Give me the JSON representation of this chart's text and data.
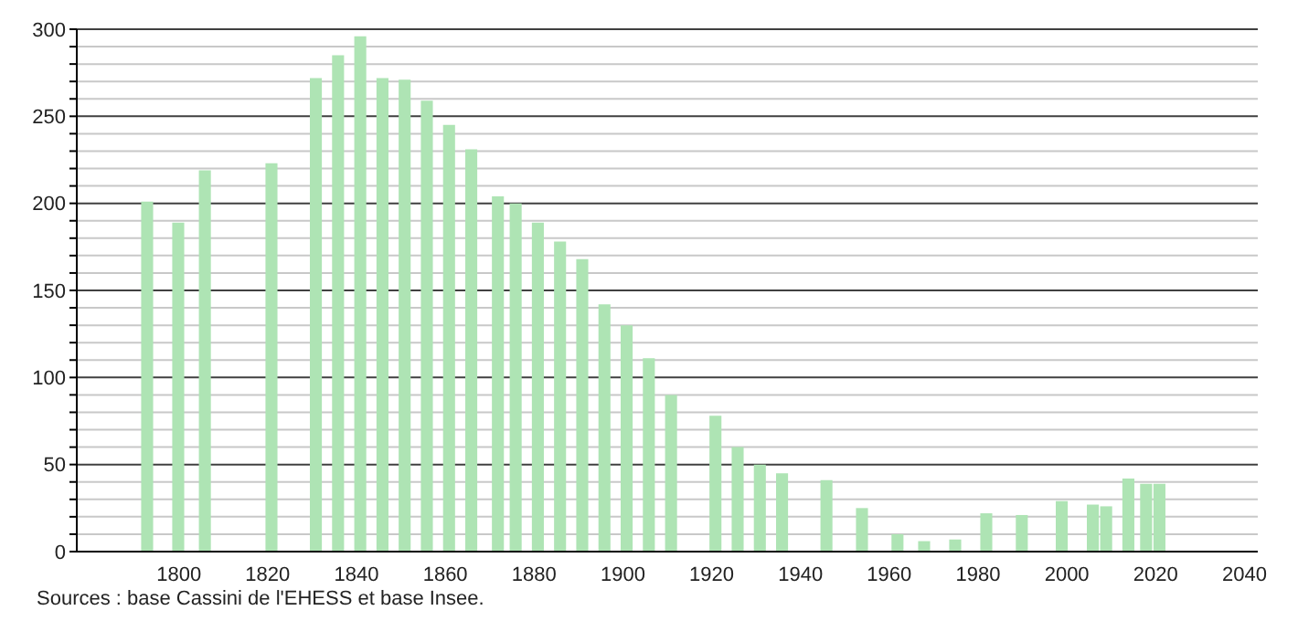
{
  "chart_data": {
    "type": "bar",
    "x": [
      1793,
      1800,
      1806,
      1821,
      1831,
      1836,
      1841,
      1846,
      1851,
      1856,
      1861,
      1866,
      1872,
      1876,
      1881,
      1886,
      1891,
      1896,
      1901,
      1906,
      1911,
      1921,
      1926,
      1931,
      1936,
      1946,
      1954,
      1962,
      1968,
      1975,
      1982,
      1990,
      1999,
      2006,
      2009,
      2014,
      2018,
      2021
    ],
    "values": [
      201,
      189,
      219,
      223,
      272,
      285,
      296,
      272,
      271,
      259,
      245,
      231,
      204,
      200,
      189,
      178,
      168,
      142,
      130,
      111,
      90,
      78,
      60,
      50,
      45,
      41,
      25,
      10,
      6,
      7,
      22,
      21,
      29,
      27,
      26,
      42,
      39,
      39
    ],
    "color": "#aee4b4",
    "xlim": [
      1777,
      2043
    ],
    "xticks": [
      1800,
      1820,
      1840,
      1860,
      1880,
      1900,
      1920,
      1940,
      1960,
      1980,
      2000,
      2020,
      2040
    ],
    "ylim": [
      0,
      300
    ],
    "yticks": [
      0,
      {
        "value": 10,
        "label": null
      },
      {
        "value": 20,
        "label": null
      },
      {
        "value": 30,
        "label": null
      },
      {
        "value": 40,
        "label": null
      },
      50,
      {
        "value": 60,
        "label": null
      },
      {
        "value": 70,
        "label": null
      },
      {
        "value": 80,
        "label": null
      },
      {
        "value": 90,
        "label": null
      },
      100,
      {
        "value": 110,
        "label": null
      },
      {
        "value": 120,
        "label": null
      },
      {
        "value": 130,
        "label": null
      },
      {
        "value": 140,
        "label": null
      },
      150,
      {
        "value": 160,
        "label": null
      },
      {
        "value": 170,
        "label": null
      },
      {
        "value": 180,
        "label": null
      },
      {
        "value": 190,
        "label": null
      },
      200,
      {
        "value": 210,
        "label": null
      },
      {
        "value": 220,
        "label": null
      },
      {
        "value": 230,
        "label": null
      },
      {
        "value": 240,
        "label": null
      },
      250,
      {
        "value": 260,
        "label": null
      },
      {
        "value": 270,
        "label": null
      },
      {
        "value": 280,
        "label": null
      },
      {
        "value": 290,
        "label": null
      },
      300
    ],
    "grid": "y",
    "annotations": [
      "Sources : base Cassini de l'EHESS et base Insee."
    ]
  }
}
